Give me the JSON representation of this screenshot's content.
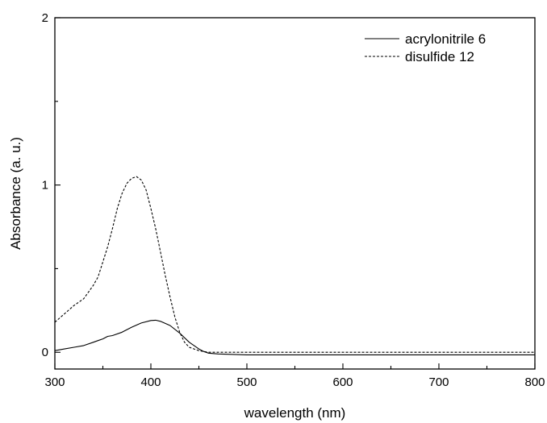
{
  "chart_data": {
    "type": "line",
    "xlabel": "wavelength (nm)",
    "ylabel": "Absorbance (a. u.)",
    "xlim": [
      300,
      800
    ],
    "ylim": [
      -0.1,
      2.0
    ],
    "x_ticks": [
      300,
      400,
      500,
      600,
      700,
      800
    ],
    "y_ticks": [
      0,
      1,
      2
    ],
    "grid": false,
    "legend_position": "top-right",
    "series": [
      {
        "name": "acrylonitrile 6",
        "style": "solid",
        "color": "#000000",
        "x": [
          300,
          310,
          320,
          330,
          340,
          345,
          350,
          355,
          360,
          370,
          380,
          390,
          400,
          405,
          410,
          420,
          430,
          440,
          450,
          455,
          460,
          470,
          500,
          600,
          700,
          800
        ],
        "y": [
          0.01,
          0.02,
          0.03,
          0.04,
          0.06,
          0.07,
          0.08,
          0.095,
          0.1,
          0.12,
          0.15,
          0.175,
          0.19,
          0.192,
          0.185,
          0.16,
          0.115,
          0.06,
          0.02,
          0.005,
          -0.005,
          -0.01,
          -0.015,
          -0.015,
          -0.015,
          -0.015
        ]
      },
      {
        "name": "disulfide 12",
        "style": "dashed",
        "color": "#000000",
        "x": [
          300,
          310,
          320,
          330,
          340,
          345,
          350,
          355,
          360,
          365,
          370,
          375,
          380,
          385,
          390,
          395,
          400,
          405,
          410,
          415,
          420,
          425,
          430,
          435,
          440,
          445,
          450,
          455,
          460,
          470,
          500,
          600,
          700,
          800
        ],
        "y": [
          0.18,
          0.23,
          0.28,
          0.32,
          0.4,
          0.45,
          0.54,
          0.63,
          0.74,
          0.86,
          0.95,
          1.01,
          1.04,
          1.05,
          1.03,
          0.97,
          0.86,
          0.74,
          0.6,
          0.46,
          0.33,
          0.21,
          0.12,
          0.06,
          0.03,
          0.02,
          0.01,
          0.005,
          0.0,
          0.0,
          0.0,
          0.0,
          0.0,
          0.0
        ]
      }
    ]
  }
}
